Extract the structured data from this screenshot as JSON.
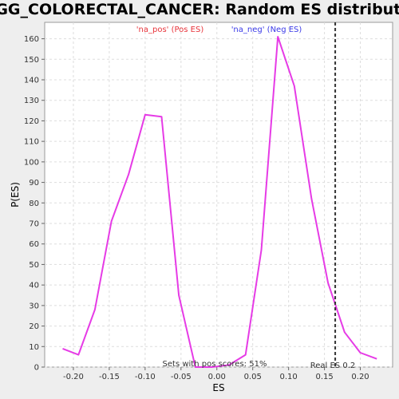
{
  "chart_data": {
    "type": "line",
    "title": "KEGG_COLORECTAL_CANCER: Random ES distribution",
    "xlabel": "ES",
    "ylabel": "P(ES)",
    "xlim": [
      -0.24,
      0.245
    ],
    "ylim": [
      0,
      168
    ],
    "xticks": [
      -0.2,
      -0.15,
      -0.1,
      -0.05,
      0.0,
      0.05,
      0.1,
      0.15,
      0.2
    ],
    "xtick_labels": [
      "-0.20",
      "-0.15",
      "-0.10",
      "-0.05",
      "0.00",
      "0.05",
      "0.10",
      "0.15",
      "0.20"
    ],
    "yticks": [
      0,
      10,
      20,
      30,
      40,
      50,
      60,
      70,
      80,
      90,
      100,
      110,
      120,
      130,
      140,
      150,
      160
    ],
    "ytick_labels": [
      "0",
      "10",
      "20",
      "30",
      "40",
      "50",
      "60",
      "70",
      "80",
      "90",
      "100",
      "110",
      "120",
      "130",
      "140",
      "150",
      "160"
    ],
    "grid": true,
    "legend": [
      {
        "label": "'na_pos' (Pos ES)",
        "color": "#e8333a"
      },
      {
        "label": "'na_neg' (Neg ES)",
        "color": "#3a3ae8"
      }
    ],
    "series": [
      {
        "color": "#e63be6",
        "x": [
          -0.215,
          -0.193,
          -0.17,
          -0.147,
          -0.123,
          -0.1,
          -0.077,
          -0.053,
          -0.03,
          -0.007,
          0.017,
          0.04,
          0.062,
          0.085,
          0.108,
          0.132,
          0.155,
          0.178,
          0.2,
          0.223
        ],
        "y": [
          9,
          6,
          28,
          71,
          94,
          123,
          122,
          35,
          0,
          0,
          1,
          6,
          57,
          161,
          137,
          82,
          41,
          17,
          7,
          4
        ]
      }
    ],
    "vline": {
      "x": 0.165,
      "label": "Real ES 0.2",
      "style": "dashed",
      "color": "#333333"
    },
    "annotations": [
      {
        "text": "Sets with pos scores: 51%"
      }
    ]
  }
}
